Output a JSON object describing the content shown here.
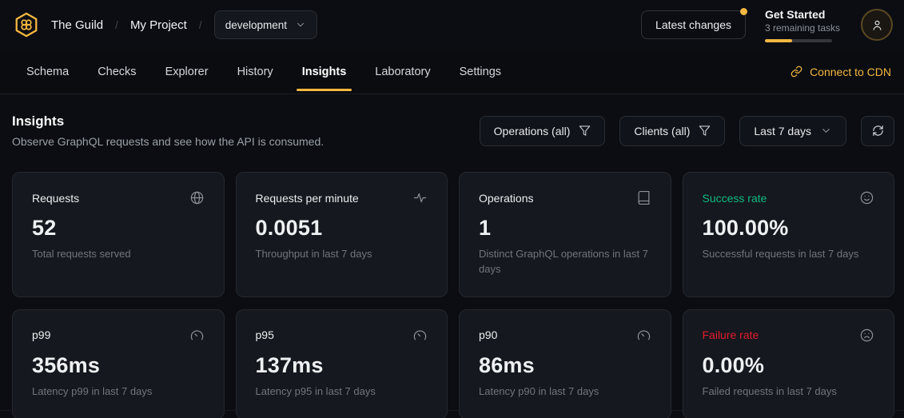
{
  "header": {
    "org": "The Guild",
    "project": "My Project",
    "target": "development",
    "latest_changes_label": "Latest changes",
    "get_started": {
      "title": "Get Started",
      "subtitle": "3 remaining tasks",
      "progress_percent": 40
    }
  },
  "nav": {
    "tabs": [
      "Schema",
      "Checks",
      "Explorer",
      "History",
      "Insights",
      "Laboratory",
      "Settings"
    ],
    "active_tab": "Insights",
    "connect_cdn_label": "Connect to CDN"
  },
  "page": {
    "title": "Insights",
    "subtitle": "Observe GraphQL requests and see how the API is consumed."
  },
  "filters": {
    "operations_label": "Operations (all)",
    "clients_label": "Clients (all)",
    "period_label": "Last 7 days"
  },
  "colors": {
    "accent": "#f4b740",
    "success": "#10b981",
    "failure": "#e11d2f"
  },
  "cards": [
    {
      "title": "Requests",
      "value": "52",
      "description": "Total requests served",
      "icon": "globe-icon",
      "title_color": null
    },
    {
      "title": "Requests per minute",
      "value": "0.0051",
      "description": "Throughput in last 7 days",
      "icon": "activity-icon",
      "title_color": null
    },
    {
      "title": "Operations",
      "value": "1",
      "description": "Distinct GraphQL operations in last 7 days",
      "icon": "book-icon",
      "title_color": null
    },
    {
      "title": "Success rate",
      "value": "100.00%",
      "description": "Successful requests in last 7 days",
      "icon": "smile-icon",
      "title_color": "#10b981"
    },
    {
      "title": "p99",
      "value": "356ms",
      "description": "Latency p99 in last 7 days",
      "icon": "gauge-icon",
      "title_color": null
    },
    {
      "title": "p95",
      "value": "137ms",
      "description": "Latency p95 in last 7 days",
      "icon": "gauge-icon",
      "title_color": null
    },
    {
      "title": "p90",
      "value": "86ms",
      "description": "Latency p90 in last 7 days",
      "icon": "gauge-icon",
      "title_color": null
    },
    {
      "title": "Failure rate",
      "value": "0.00%",
      "description": "Failed requests in last 7 days",
      "icon": "frown-icon",
      "title_color": "#e11d2f"
    }
  ]
}
